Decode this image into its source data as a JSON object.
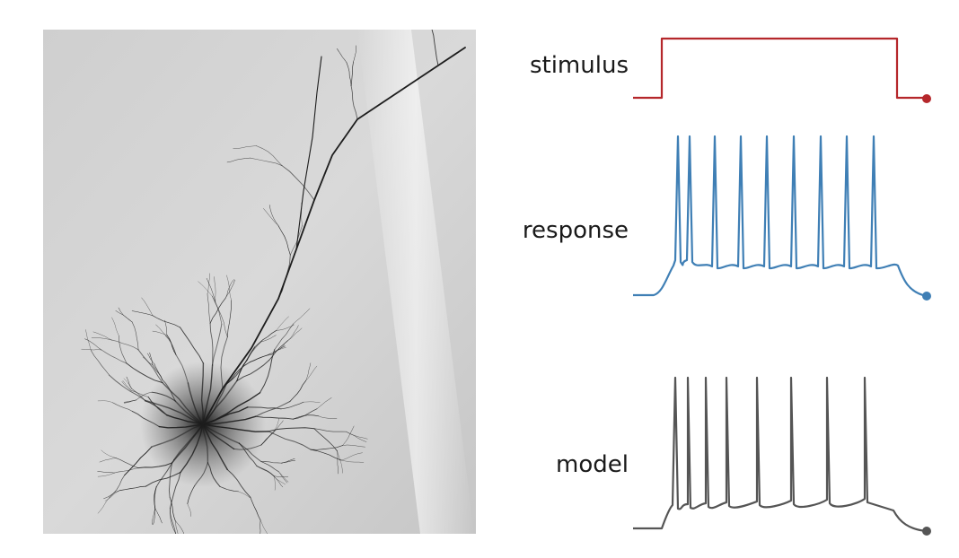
{
  "panels": {
    "image": {
      "kind": "neuron-micrograph"
    },
    "traces": [
      {
        "label": "stimulus",
        "color": "#b5272b"
      },
      {
        "label": "response",
        "color": "#3f7fb5"
      },
      {
        "label": "model",
        "color": "#555555"
      }
    ]
  }
}
